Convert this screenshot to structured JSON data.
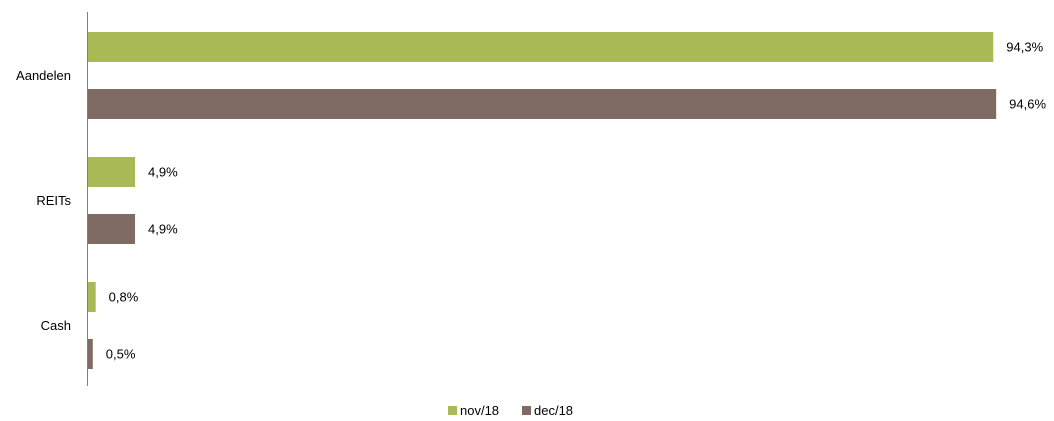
{
  "chart_data": {
    "type": "bar",
    "orientation": "horizontal",
    "categories": [
      "Aandelen",
      "REITs",
      "Cash"
    ],
    "series": [
      {
        "name": "nov/18",
        "color": "#a9b956",
        "values": [
          94.3,
          4.9,
          0.8
        ],
        "labels": [
          "94,3%",
          "4,9%",
          "0,8%"
        ]
      },
      {
        "name": "dec/18",
        "color": "#7f6b63",
        "values": [
          94.6,
          4.9,
          0.5
        ],
        "labels": [
          "94,6%",
          "4,9%",
          "0,5%"
        ]
      }
    ],
    "xlim": [
      0,
      95
    ],
    "grid": false,
    "legend_position": "bottom",
    "axis_color": "#808080"
  }
}
